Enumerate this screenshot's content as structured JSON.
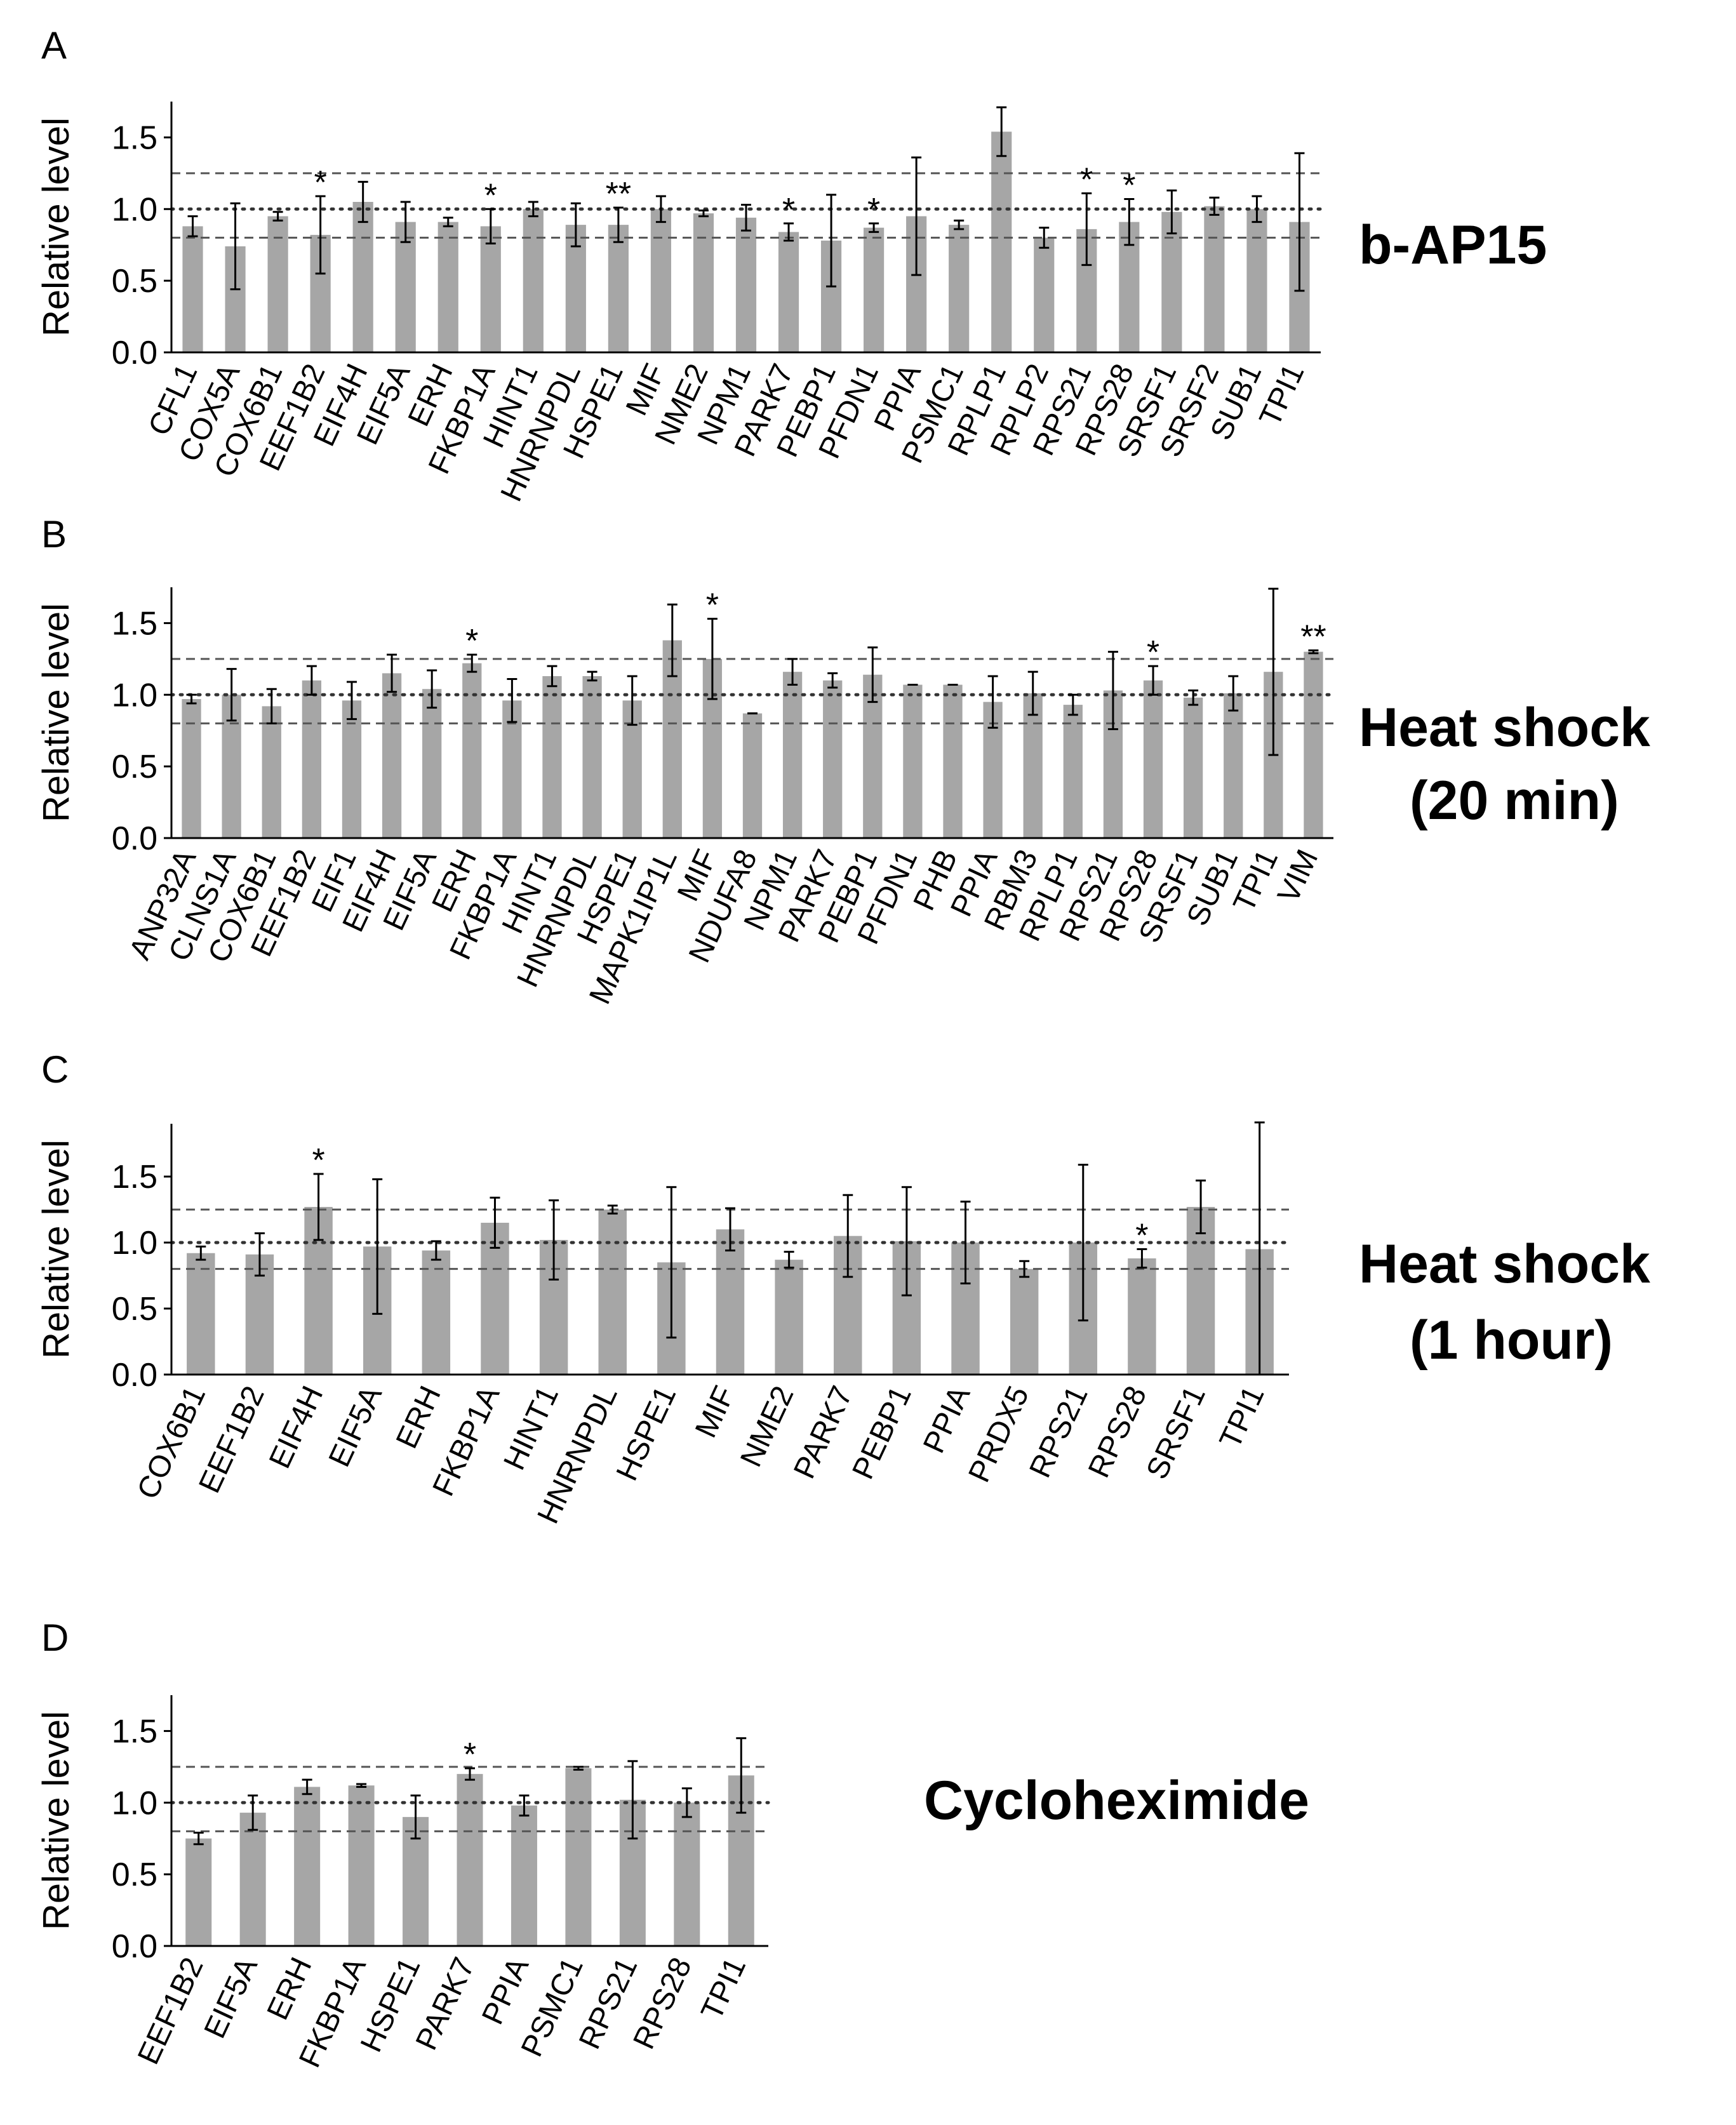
{
  "chart_data": [
    {
      "type": "bar",
      "panel": "A",
      "condition": [
        "b-AP15"
      ],
      "ylabel": "Relative level",
      "ylim": [
        0,
        1.75
      ],
      "yticks": [
        "0.0",
        "0.5",
        "1.0",
        "1.5"
      ],
      "reference_lines": {
        "dashed": [
          0.8,
          1.25
        ],
        "dotted": [
          1.0
        ]
      },
      "categories": [
        "CFL1",
        "COX5A",
        "COX6B1",
        "EEF1B2",
        "EIF4H",
        "EIF5A",
        "ERH",
        "FKBP1A",
        "HINT1",
        "HNRNPDL",
        "HSPE1",
        "MIF",
        "NME2",
        "NPM1",
        "PARK7",
        "PEBP1",
        "PFDN1",
        "PPIA",
        "PSMC1",
        "RPLP1",
        "RPLP2",
        "RPS21",
        "RPS28",
        "SRSF1",
        "SRSF2",
        "SUB1",
        "TPI1"
      ],
      "values": [
        0.88,
        0.74,
        0.95,
        0.82,
        1.05,
        0.91,
        0.91,
        0.88,
        1.0,
        0.89,
        0.89,
        1.0,
        0.97,
        0.94,
        0.84,
        0.78,
        0.87,
        0.95,
        0.89,
        1.54,
        0.8,
        0.86,
        0.91,
        0.98,
        1.02,
        1.0,
        0.91
      ],
      "errors": [
        0.07,
        0.3,
        0.03,
        0.27,
        0.14,
        0.14,
        0.03,
        0.12,
        0.05,
        0.15,
        0.12,
        0.09,
        0.02,
        0.09,
        0.06,
        0.32,
        0.03,
        0.41,
        0.03,
        0.17,
        0.07,
        0.25,
        0.16,
        0.15,
        0.06,
        0.09,
        0.48
      ],
      "significance": [
        "",
        "",
        "",
        "*",
        "",
        "",
        "",
        "*",
        "",
        "",
        "**",
        "",
        "",
        "",
        "*",
        "",
        "*",
        "",
        "",
        "",
        "",
        "*",
        "*",
        "",
        "",
        "",
        ""
      ]
    },
    {
      "type": "bar",
      "panel": "B",
      "condition": [
        "Heat shock",
        "(20 min)"
      ],
      "ylabel": "Relative level",
      "ylim": [
        0,
        1.75
      ],
      "yticks": [
        "0.0",
        "0.5",
        "1.0",
        "1.5"
      ],
      "reference_lines": {
        "dashed": [
          0.8,
          1.25
        ],
        "dotted": [
          1.0
        ]
      },
      "categories": [
        "ANP32A",
        "CLNS1A",
        "COX6B1",
        "EEF1B2",
        "EIF1",
        "EIF4H",
        "EIF5A",
        "ERH",
        "FKBP1A",
        "HINT1",
        "HNRNPDL",
        "HSPE1",
        "MAPK1IP1L",
        "MIF",
        "NDUFA8",
        "NPM1",
        "PARK7",
        "PEBP1",
        "PFDN1",
        "PHB",
        "PPIA",
        "RBM3",
        "RPLP1",
        "RPS21",
        "RPS28",
        "SRSF1",
        "SUB1",
        "TPI1",
        "VIM"
      ],
      "values": [
        0.97,
        1.0,
        0.92,
        1.1,
        0.96,
        1.15,
        1.04,
        1.22,
        0.96,
        1.13,
        1.13,
        0.96,
        1.38,
        1.25,
        0.87,
        1.16,
        1.1,
        1.14,
        1.07,
        1.07,
        0.95,
        1.01,
        0.93,
        1.03,
        1.1,
        0.98,
        1.01,
        1.16,
        1.3
      ],
      "errors": [
        0.03,
        0.18,
        0.12,
        0.1,
        0.13,
        0.13,
        0.13,
        0.06,
        0.15,
        0.07,
        0.03,
        0.17,
        0.25,
        0.28,
        0.0,
        0.09,
        0.05,
        0.19,
        0.0,
        0.0,
        0.18,
        0.15,
        0.07,
        0.27,
        0.1,
        0.05,
        0.12,
        0.58,
        0.01
      ],
      "significance": [
        "",
        "",
        "",
        "",
        "",
        "",
        "",
        "*",
        "",
        "",
        "",
        "",
        "",
        "*",
        "",
        "",
        "",
        "",
        "",
        "",
        "",
        "",
        "",
        "",
        "*",
        "",
        "",
        "",
        "**"
      ]
    },
    {
      "type": "bar",
      "panel": "C",
      "condition": [
        "Heat shock",
        "(1 hour)"
      ],
      "ylabel": "Relative level",
      "ylim": [
        0,
        1.9
      ],
      "yticks": [
        "0.0",
        "0.5",
        "1.0",
        "1.5"
      ],
      "reference_lines": {
        "dashed": [
          0.8,
          1.25
        ],
        "dotted": [
          1.0
        ]
      },
      "categories": [
        "COX6B1",
        "EEF1B2",
        "EIF4H",
        "EIF5A",
        "ERH",
        "FKBP1A",
        "HINT1",
        "HNRNPDL",
        "HSPE1",
        "MIF",
        "NME2",
        "PARK7",
        "PEBP1",
        "PPIA",
        "PRDX5",
        "RPS21",
        "RPS28",
        "SRSF1",
        "TPI1"
      ],
      "values": [
        0.92,
        0.91,
        1.27,
        0.97,
        0.94,
        1.15,
        1.02,
        1.25,
        0.85,
        1.1,
        0.87,
        1.05,
        1.01,
        1.0,
        0.8,
        1.0,
        0.88,
        1.27,
        0.95
      ],
      "errors": [
        0.05,
        0.16,
        0.25,
        0.51,
        0.07,
        0.19,
        0.3,
        0.03,
        0.57,
        0.16,
        0.06,
        0.31,
        0.41,
        0.31,
        0.06,
        0.59,
        0.07,
        0.2,
        0.96
      ],
      "significance": [
        "",
        "",
        "*",
        "",
        "",
        "",
        "",
        "",
        "",
        "",
        "",
        "",
        "",
        "",
        "",
        "",
        "*",
        "",
        ""
      ]
    },
    {
      "type": "bar",
      "panel": "D",
      "condition": [
        "Cycloheximide"
      ],
      "ylabel": "Relative level",
      "ylim": [
        0,
        1.75
      ],
      "yticks": [
        "0.0",
        "0.5",
        "1.0",
        "1.5"
      ],
      "reference_lines": {
        "dashed": [
          0.8,
          1.25
        ],
        "dotted": [
          1.0
        ]
      },
      "categories": [
        "EEF1B2",
        "EIF5A",
        "ERH",
        "FKBP1A",
        "HSPE1",
        "PARK7",
        "PPIA",
        "PSMC1",
        "RPS21",
        "RPS28",
        "TPI1"
      ],
      "values": [
        0.75,
        0.93,
        1.11,
        1.12,
        0.9,
        1.2,
        0.98,
        1.24,
        1.02,
        1.0,
        1.19
      ],
      "errors": [
        0.04,
        0.12,
        0.05,
        0.01,
        0.15,
        0.04,
        0.07,
        0.01,
        0.27,
        0.1,
        0.26
      ],
      "significance": [
        "",
        "",
        "",
        "",
        "",
        "*",
        "",
        "",
        "",
        "",
        ""
      ]
    }
  ]
}
